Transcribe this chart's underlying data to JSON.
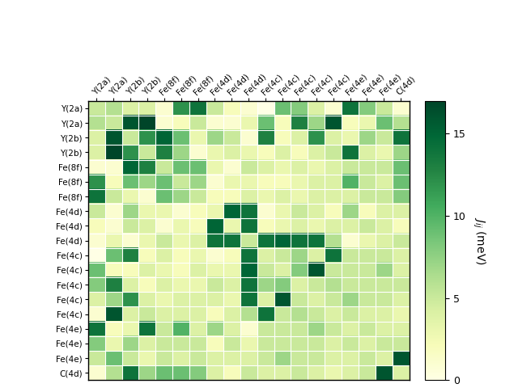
{
  "row_labels": [
    "Y(2a)",
    "Y(2a)",
    "Y(2b)",
    "Y(2b)",
    "Fe(8f)",
    "Fe(8f)",
    "Fe(8f)",
    "Fe(4d)",
    "Fe(4d)",
    "Fe(4d)",
    "Fe(4c)",
    "Fe(4c)",
    "Fe(4c)",
    "Fe(4c)",
    "Fe(4c)",
    "Fe(4e)",
    "Fe(4e)",
    "Fe(4e)",
    "C(4d)"
  ],
  "col_labels": [
    "Y(2a)",
    "Y(2a)",
    "Y(2b)",
    "Y(2b)",
    "Fe(8f)",
    "Fe(8f)",
    "Fe(8f)",
    "Fe(4d)",
    "Fe(4d)",
    "Fe(4d)",
    "Fe(4c)",
    "Fe(4c)",
    "Fe(4c)",
    "Fe(4c)",
    "Fe(4c)",
    "Fe(4e)",
    "Fe(4e)",
    "Fe(4e)",
    "C(4d)"
  ],
  "matrix": [
    [
      5,
      6,
      4,
      4,
      1,
      12,
      14,
      5,
      2,
      1,
      0,
      9,
      8,
      4,
      1,
      14,
      8,
      5,
      1
    ],
    [
      6,
      5,
      16,
      17,
      1,
      2,
      5,
      1,
      1,
      3,
      9,
      2,
      13,
      7,
      16,
      2,
      3,
      9,
      6
    ],
    [
      4,
      16,
      5,
      12,
      15,
      9,
      3,
      7,
      5,
      1,
      13,
      2,
      4,
      12,
      4,
      3,
      7,
      5,
      14
    ],
    [
      4,
      17,
      12,
      5,
      13,
      7,
      1,
      3,
      4,
      3,
      2,
      4,
      2,
      4,
      5,
      14,
      4,
      3,
      7
    ],
    [
      1,
      1,
      15,
      13,
      5,
      9,
      9,
      3,
      1,
      5,
      4,
      3,
      4,
      3,
      4,
      5,
      5,
      5,
      9
    ],
    [
      12,
      2,
      9,
      7,
      9,
      5,
      7,
      1,
      3,
      3,
      2,
      2,
      3,
      4,
      4,
      10,
      5,
      4,
      9
    ],
    [
      14,
      5,
      3,
      1,
      9,
      7,
      5,
      2,
      2,
      4,
      3,
      4,
      3,
      4,
      4,
      4,
      5,
      5,
      8
    ],
    [
      5,
      1,
      7,
      3,
      3,
      1,
      2,
      3,
      15,
      14,
      1,
      3,
      5,
      4,
      2,
      7,
      2,
      4,
      4
    ],
    [
      2,
      1,
      5,
      4,
      1,
      3,
      2,
      15,
      3,
      14,
      2,
      3,
      4,
      3,
      4,
      4,
      5,
      4,
      2
    ],
    [
      1,
      3,
      1,
      3,
      5,
      3,
      4,
      14,
      14,
      5,
      14,
      15,
      14,
      14,
      6,
      1,
      3,
      4,
      5
    ],
    [
      0,
      9,
      13,
      2,
      4,
      2,
      3,
      1,
      2,
      14,
      4,
      5,
      7,
      4,
      14,
      5,
      5,
      5,
      4
    ],
    [
      9,
      2,
      2,
      4,
      3,
      2,
      4,
      3,
      3,
      15,
      5,
      4,
      8,
      16,
      5,
      5,
      5,
      7,
      4
    ],
    [
      8,
      13,
      4,
      2,
      4,
      3,
      3,
      5,
      4,
      14,
      7,
      8,
      4,
      5,
      6,
      5,
      5,
      5,
      5
    ],
    [
      4,
      7,
      12,
      4,
      3,
      4,
      4,
      4,
      3,
      14,
      4,
      16,
      5,
      4,
      5,
      7,
      5,
      5,
      4
    ],
    [
      1,
      16,
      4,
      5,
      4,
      4,
      4,
      2,
      4,
      6,
      14,
      5,
      6,
      5,
      4,
      5,
      4,
      4,
      3
    ],
    [
      14,
      2,
      3,
      14,
      5,
      10,
      4,
      7,
      4,
      1,
      5,
      5,
      5,
      7,
      5,
      4,
      5,
      4,
      4
    ],
    [
      8,
      3,
      7,
      4,
      5,
      5,
      5,
      2,
      5,
      3,
      5,
      5,
      5,
      5,
      4,
      5,
      4,
      5,
      5
    ],
    [
      5,
      9,
      5,
      3,
      5,
      4,
      5,
      4,
      4,
      4,
      5,
      7,
      5,
      5,
      4,
      4,
      5,
      4,
      16
    ],
    [
      1,
      6,
      14,
      7,
      9,
      9,
      8,
      4,
      2,
      5,
      4,
      4,
      5,
      4,
      3,
      4,
      5,
      16,
      4
    ]
  ],
  "vmin": 0,
  "vmax": 17,
  "cmap": "YlGn",
  "colorbar_label": "$J_{ij}$ (meV)",
  "colorbar_ticks": [
    0,
    5,
    10,
    15
  ],
  "figsize": [
    6.4,
    4.8
  ],
  "dpi": 100
}
